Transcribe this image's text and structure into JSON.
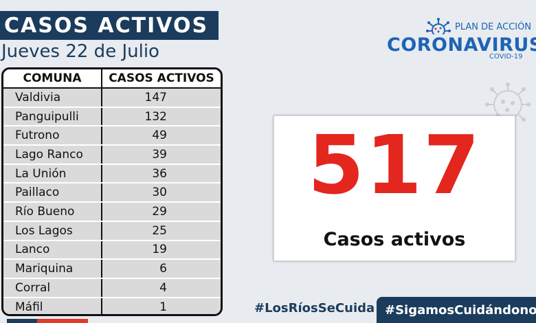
{
  "header": {
    "title": "CASOS ACTIVOS",
    "date": "Jueves 22 de Julio"
  },
  "table": {
    "columns": [
      "COMUNA",
      "CASOS ACTIVOS"
    ],
    "rows": [
      {
        "comuna": "Valdivia",
        "casos": "147"
      },
      {
        "comuna": "Panguipulli",
        "casos": "132"
      },
      {
        "comuna": "Futrono",
        "casos": "49"
      },
      {
        "comuna": "Lago Ranco",
        "casos": "39"
      },
      {
        "comuna": "La Unión",
        "casos": "36"
      },
      {
        "comuna": "Paillaco",
        "casos": "30"
      },
      {
        "comuna": "Río Bueno",
        "casos": "29"
      },
      {
        "comuna": "Los Lagos",
        "casos": "25"
      },
      {
        "comuna": "Lanco",
        "casos": "19"
      },
      {
        "comuna": "Mariquina",
        "casos": "6"
      },
      {
        "comuna": "Corral",
        "casos": "4"
      },
      {
        "comuna": "Máfil",
        "casos": "1"
      }
    ]
  },
  "logo": {
    "plan": "PLAN DE ACCIÓN",
    "name": "CORONAVIRUS",
    "sub": "COVID-19",
    "icon": "virus-icon"
  },
  "summary": {
    "total": "517",
    "label": "Casos activos"
  },
  "hashtags": {
    "left": "#LosRíosSeCuida",
    "right": "#SigamosCuidándonos"
  },
  "colors": {
    "navy": "#1b3c5c",
    "red": "#e3261e",
    "blue": "#1e63b5",
    "background": "#e8ebf0"
  }
}
